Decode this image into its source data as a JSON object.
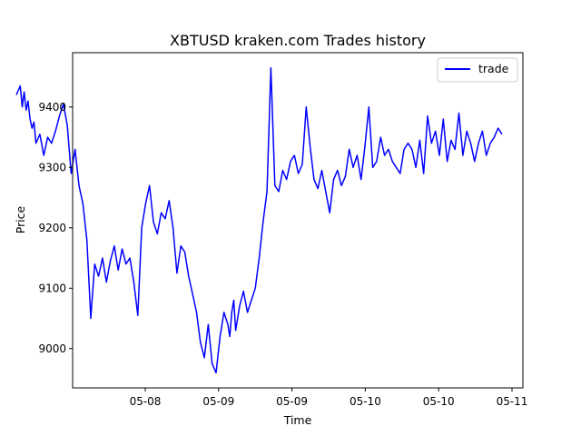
{
  "chart_data": {
    "type": "line",
    "title": "XBTUSD kraken.com Trades history",
    "xlabel": "Time",
    "ylabel": "Price",
    "x_ticks": [
      "05-08",
      "05-09",
      "05-09",
      "05-10",
      "05-10",
      "05-11"
    ],
    "y_ticks": [
      9000,
      9100,
      9200,
      9300,
      9400
    ],
    "x_range": [
      0,
      124
    ],
    "ylim": [
      8935,
      9490
    ],
    "grid": false,
    "legend": {
      "placement": "top-right"
    },
    "series": [
      {
        "name": "trade",
        "color": "#0000ff",
        "x": [
          0,
          1,
          1.5,
          2,
          2.5,
          3,
          3.5,
          4,
          4.5,
          5,
          6,
          7,
          8,
          9,
          10,
          11,
          12,
          13,
          14,
          15,
          16,
          17,
          18,
          19,
          20,
          21,
          22,
          23,
          24,
          25,
          26,
          27,
          28,
          29,
          30,
          31,
          32,
          33,
          34,
          35,
          36,
          37,
          38,
          39,
          40,
          41,
          42,
          43,
          44,
          45,
          46,
          47,
          48,
          49,
          50,
          51,
          52,
          53,
          54,
          54.5,
          55,
          55.5,
          56,
          57,
          58,
          59,
          60,
          61,
          62,
          63,
          64,
          65,
          66,
          67,
          68,
          69,
          70,
          71,
          72,
          73,
          74,
          75,
          76,
          77,
          78,
          79,
          80,
          81,
          82,
          83,
          84,
          85,
          86,
          87,
          88,
          89,
          90,
          91,
          92,
          93,
          94,
          95,
          96,
          97,
          98,
          99,
          100,
          101,
          102,
          103,
          104,
          105,
          106,
          107,
          108,
          109,
          110,
          111,
          112,
          113,
          114,
          115,
          116,
          117,
          118,
          119,
          120,
          121,
          122,
          123,
          124
        ],
        "values": [
          9420,
          9435,
          9400,
          9425,
          9395,
          9410,
          9380,
          9365,
          9375,
          9340,
          9355,
          9320,
          9350,
          9340,
          9360,
          9385,
          9405,
          9370,
          9290,
          9330,
          9270,
          9240,
          9180,
          9050,
          9140,
          9120,
          9150,
          9110,
          9145,
          9170,
          9130,
          9165,
          9140,
          9150,
          9110,
          9055,
          9200,
          9240,
          9270,
          9210,
          9190,
          9225,
          9215,
          9245,
          9200,
          9125,
          9170,
          9160,
          9120,
          9090,
          9060,
          9010,
          8985,
          9040,
          8975,
          8960,
          9020,
          9060,
          9040,
          9020,
          9060,
          9080,
          9030,
          9070,
          9095,
          9060,
          9080,
          9100,
          9150,
          9210,
          9260,
          9465,
          9270,
          9260,
          9295,
          9280,
          9310,
          9320,
          9290,
          9305,
          9400,
          9335,
          9280,
          9265,
          9295,
          9260,
          9225,
          9280,
          9295,
          9270,
          9285,
          9330,
          9300,
          9320,
          9280,
          9335,
          9400,
          9300,
          9310,
          9350,
          9320,
          9330,
          9310,
          9300,
          9290,
          9330,
          9340,
          9330,
          9300,
          9345,
          9290,
          9385,
          9340,
          9360,
          9320,
          9380,
          9310,
          9345,
          9330,
          9390,
          9320,
          9360,
          9340,
          9310,
          9340,
          9360,
          9320,
          9340,
          9350,
          9365,
          9355
        ]
      }
    ]
  }
}
